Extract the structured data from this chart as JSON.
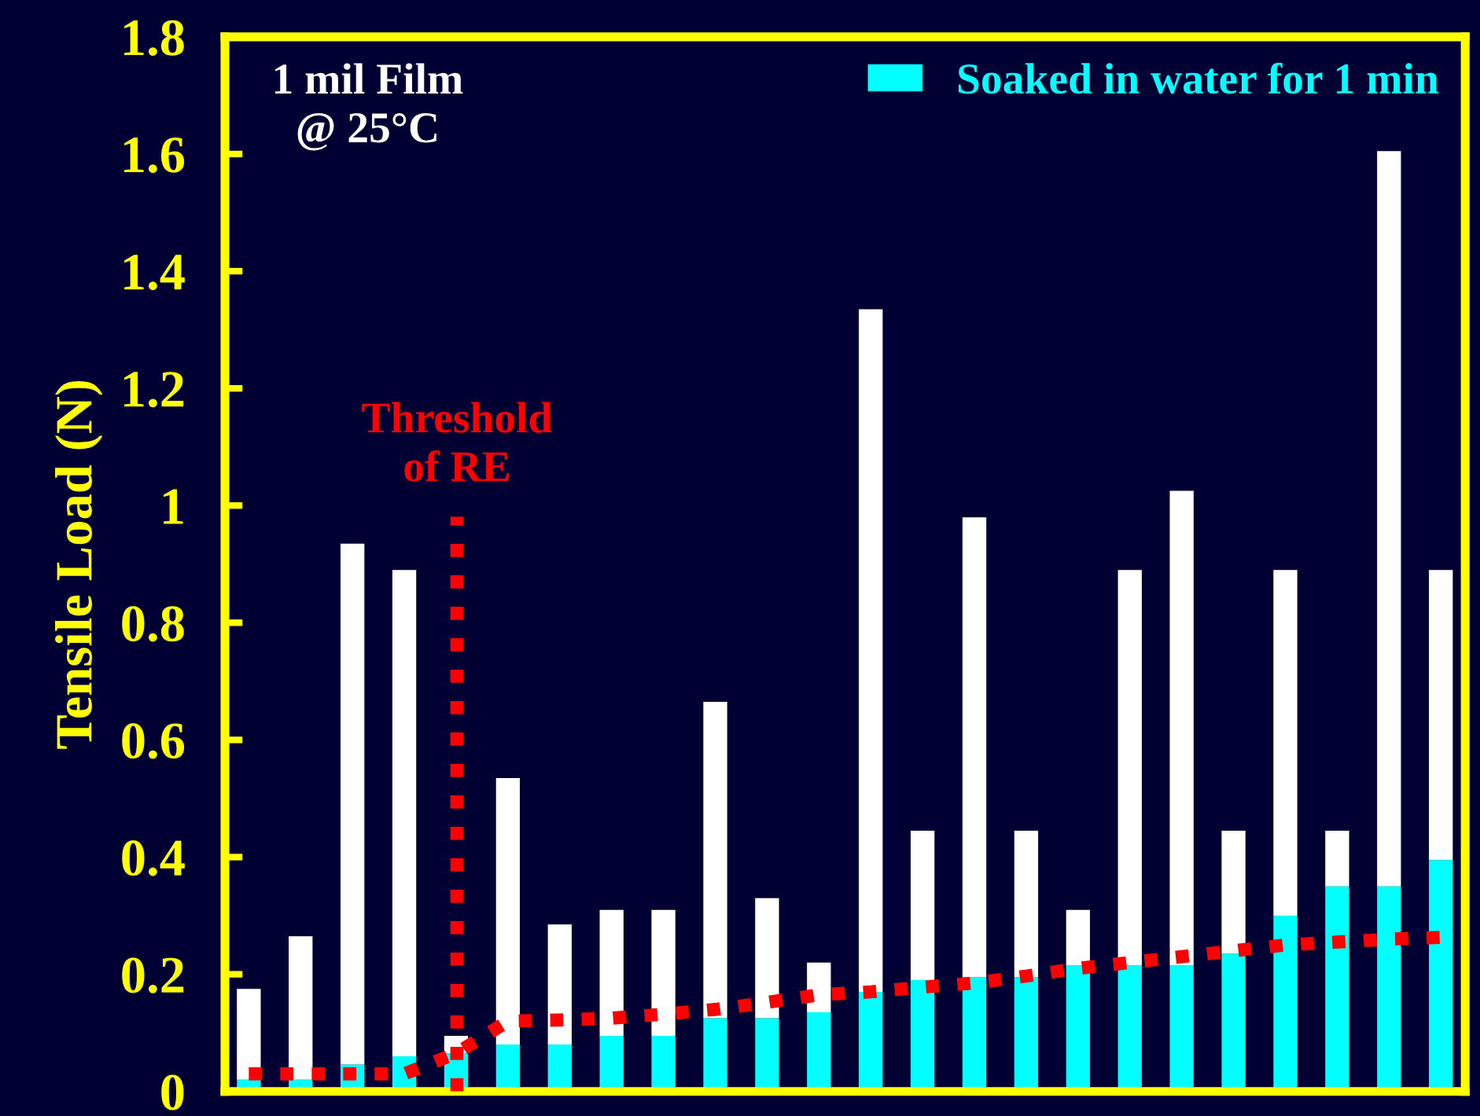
{
  "chart_data": {
    "type": "bar",
    "ylabel": "Tensile Load (N)",
    "categories": [
      null,
      null,
      null,
      null,
      null,
      null,
      null,
      null,
      null,
      null,
      null,
      null,
      null,
      null,
      null,
      null,
      null,
      null,
      null,
      null,
      null,
      null,
      null,
      null
    ],
    "series": [
      {
        "name": "Soaked in water for 1 min",
        "color": "#00ffff",
        "values": [
          0.02,
          0.02,
          0.046,
          0.06,
          0.065,
          0.08,
          0.08,
          0.095,
          0.095,
          0.125,
          0.125,
          0.135,
          0.17,
          0.19,
          0.195,
          0.195,
          0.215,
          0.215,
          0.215,
          0.235,
          0.3,
          0.35,
          0.35,
          0.395
        ]
      },
      {
        "color": "#ffffff",
        "values": [
          0.155,
          0.245,
          0.889,
          0.83,
          0.03,
          0.455,
          0.205,
          0.215,
          0.215,
          0.54,
          0.205,
          0.085,
          1.165,
          0.255,
          0.785,
          0.25,
          0.095,
          0.675,
          0.81,
          0.21,
          0.59,
          0.095,
          1.255,
          0.495
        ]
      },
      {
        "type": "line",
        "color": "#ff0000",
        "line_style": "dotted",
        "values": [
          0.03,
          0.03,
          0.03,
          0.03,
          0.065,
          0.12,
          0.122,
          0.125,
          0.132,
          0.14,
          0.152,
          0.165,
          0.17,
          0.178,
          0.185,
          0.197,
          0.21,
          0.22,
          0.23,
          0.24,
          0.25,
          0.255,
          0.26,
          0.263
        ]
      }
    ],
    "ylim": [
      0,
      1.8
    ],
    "yticks": [
      0,
      0.2,
      0.4,
      0.6,
      0.8,
      1,
      1.2,
      1.4,
      1.6,
      1.8
    ],
    "annotations": [
      "1 mil Film\n@ 25°C",
      "Threshold\nof RE"
    ],
    "stacked": true,
    "legend": "top right",
    "grid": false
  }
}
